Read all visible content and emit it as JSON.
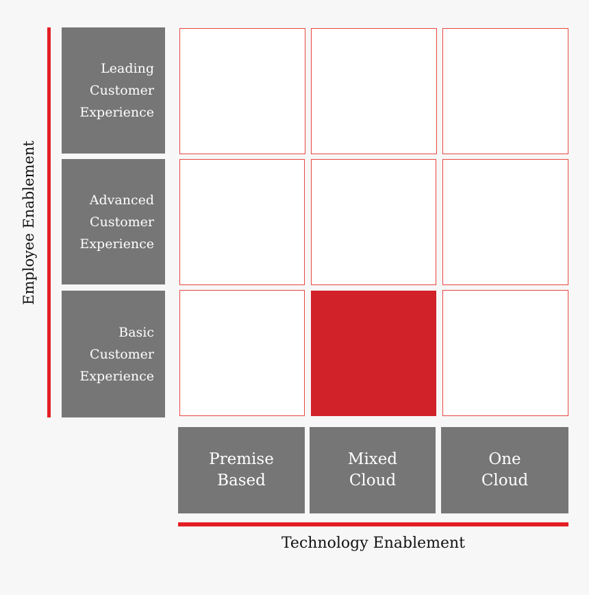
{
  "y_axis": {
    "label": "Employee Enablement"
  },
  "x_axis": {
    "label": "Technology Enablement"
  },
  "rows": [
    {
      "label": "Leading\nCustomer\nExperience"
    },
    {
      "label": "Advanced\nCustomer\nExperience"
    },
    {
      "label": "Basic\nCustomer\nExperience"
    }
  ],
  "columns": [
    {
      "label": "Premise\nBased"
    },
    {
      "label": "Mixed\nCloud"
    },
    {
      "label": "One\nCloud"
    }
  ],
  "highlighted_cell": {
    "row": "Basic Customer Experience",
    "column": "Mixed Cloud"
  },
  "colors": {
    "accent_red": "#e31e24",
    "highlight_fill": "#d12229",
    "label_gray": "#767676",
    "cell_border": "#e7453f",
    "background": "#f7f7f7"
  }
}
